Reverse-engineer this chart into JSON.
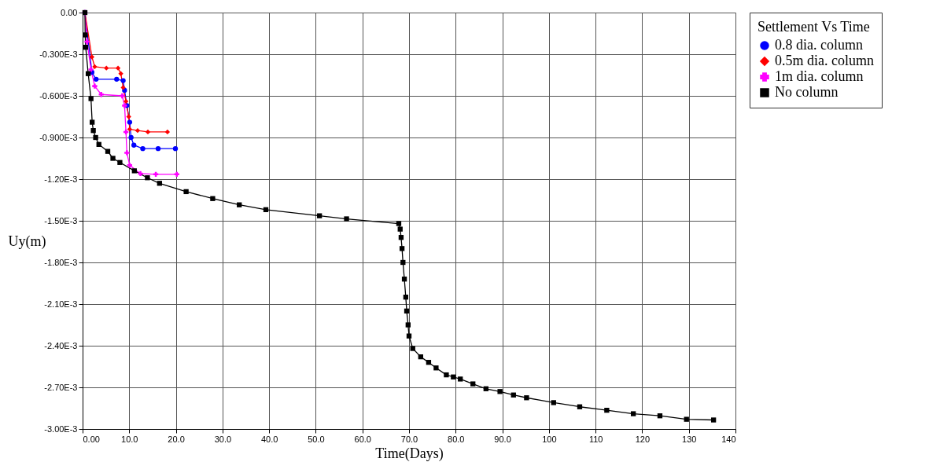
{
  "chart_data": {
    "type": "line",
    "xlabel": "Time(Days)",
    "ylabel": "Uy(m)",
    "legend_title": "Settlement Vs Time",
    "xlim": [
      0,
      140
    ],
    "ylim": [
      -0.003,
      0
    ],
    "xticks": [
      {
        "value": 0,
        "label": "0.00"
      },
      {
        "value": 10,
        "label": "10.0"
      },
      {
        "value": 20,
        "label": "20.0"
      },
      {
        "value": 30,
        "label": "30.0"
      },
      {
        "value": 40,
        "label": "40.0"
      },
      {
        "value": 50,
        "label": "50.0"
      },
      {
        "value": 60,
        "label": "60.0"
      },
      {
        "value": 70,
        "label": "70.0"
      },
      {
        "value": 80,
        "label": "80.0"
      },
      {
        "value": 90,
        "label": "90.0"
      },
      100,
      110,
      120,
      130,
      140
    ],
    "yticks": [
      {
        "value": 0,
        "label": "0.00"
      },
      {
        "value": -0.0003,
        "label": "-0.300E-3"
      },
      {
        "value": -0.0006,
        "label": "-0.600E-3"
      },
      {
        "value": -0.0009,
        "label": "-0.900E-3"
      },
      {
        "value": -0.0012,
        "label": "-1.20E-3"
      },
      {
        "value": -0.0015,
        "label": "-1.50E-3"
      },
      {
        "value": -0.0018,
        "label": "-1.80E-3"
      },
      {
        "value": -0.0021,
        "label": "-2.10E-3"
      },
      {
        "value": -0.0024,
        "label": "-2.40E-3"
      },
      {
        "value": -0.0027,
        "label": "-2.70E-3"
      },
      {
        "value": -0.003,
        "label": "-3.00E-3"
      }
    ],
    "grid": true,
    "legend": "top right",
    "series": [
      {
        "name": "0.8 dia. column",
        "color": "#0000ff",
        "marker": "circle",
        "x": [
          0.5,
          2.0,
          2.9,
          7.3,
          8.7,
          9.0,
          9.5,
          10.1,
          10.4,
          11.0,
          12.9,
          16.2,
          19.9
        ],
        "values": [
          0,
          -0.00043,
          -0.00048,
          -0.00048,
          -0.00049,
          -0.00056,
          -0.00067,
          -0.00079,
          -0.0009,
          -0.000955,
          -0.00098,
          -0.00098,
          -0.00098
        ]
      },
      {
        "name": "0.5m dia. column",
        "color": "#ff0000",
        "marker": "diamond",
        "x": [
          0.5,
          2.0,
          2.6,
          5.1,
          7.6,
          8.2,
          8.7,
          9.3,
          9.9,
          10.1,
          11.8,
          14.0,
          18.2
        ],
        "values": [
          0,
          -0.00032,
          -0.00039,
          -0.0004,
          -0.0004,
          -0.00044,
          -0.00054,
          -0.00064,
          -0.00075,
          -0.00084,
          -0.00085,
          -0.00086,
          -0.00086
        ]
      },
      {
        "name": "1m dia. column",
        "color": "#ff00ff",
        "marker": "cross",
        "x": [
          0.5,
          0.95,
          1.8,
          2.6,
          4.0,
          8.5,
          9.0,
          9.3,
          9.5,
          10.1,
          12.4,
          15.7,
          20.2
        ],
        "values": [
          0,
          -0.00021,
          -0.00041,
          -0.00053,
          -0.00059,
          -0.0006,
          -0.00067,
          -0.00086,
          -0.00101,
          -0.0011,
          -0.00116,
          -0.001165,
          -0.001165
        ]
      },
      {
        "name": "No column",
        "color": "#000000",
        "marker": "square",
        "x": [
          0.5,
          0.55,
          0.67,
          1.2,
          1.8,
          2.05,
          2.3,
          2.8,
          3.5,
          5.4,
          6.5,
          8.0,
          11.1,
          13.9,
          16.5,
          22.2,
          27.9,
          33.6,
          39.3,
          50.8,
          56.6,
          67.8,
          68.1,
          68.3,
          68.5,
          68.7,
          69.0,
          69.3,
          69.5,
          69.8,
          70.0,
          70.8,
          72.5,
          74.2,
          75.8,
          78.0,
          79.5,
          81.0,
          83.7,
          86.5,
          89.5,
          92.4,
          95.2,
          101.0,
          106.6,
          112.4,
          118.1,
          123.8,
          129.5,
          135.3
        ],
        "values": [
          0,
          -0.000161,
          -0.00025,
          -0.00044,
          -0.00062,
          -0.00079,
          -0.00085,
          -0.0009,
          -0.00095,
          -0.001,
          -0.00105,
          -0.00108,
          -0.00114,
          -0.00119,
          -0.00123,
          -0.00129,
          -0.00134,
          -0.001385,
          -0.00142,
          -0.001464,
          -0.001486,
          -0.00152,
          -0.00156,
          -0.00162,
          -0.0017,
          -0.0018,
          -0.00192,
          -0.00205,
          -0.00215,
          -0.00225,
          -0.00233,
          -0.00242,
          -0.00248,
          -0.00252,
          -0.00256,
          -0.00261,
          -0.002625,
          -0.00264,
          -0.002675,
          -0.00271,
          -0.00273,
          -0.002755,
          -0.002775,
          -0.00281,
          -0.00284,
          -0.002865,
          -0.00289,
          -0.002905,
          -0.00293,
          -0.002935
        ]
      }
    ]
  }
}
